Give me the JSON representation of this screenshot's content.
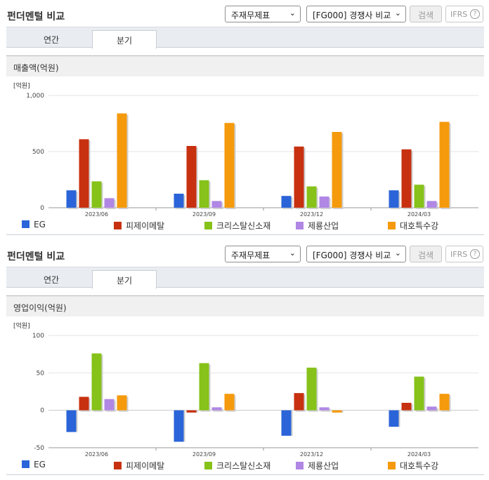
{
  "header": {
    "title": "펀더멘털 비교",
    "statement_select": "주재무제표",
    "peer_select": "[FG000] 경쟁사 비교",
    "search_label": "검색",
    "ifrs_label": "IFRS",
    "help_glyph": "?"
  },
  "tabs": [
    "연간",
    "분기"
  ],
  "active_tab": 1,
  "colors": {
    "EG": "#2a64d8",
    "피제이메탈": "#c73110",
    "크리스탈신소재": "#86c21a",
    "제룡산업": "#b087e4",
    "대호특수강": "#f59a0c"
  },
  "panels": [
    {
      "subtitle": "매출액(억원)",
      "unit_label": "[억원]"
    },
    {
      "subtitle": "영업이익(억원)",
      "unit_label": "[억원]"
    }
  ],
  "chart_data": [
    {
      "type": "bar",
      "ylabel": "[억원]",
      "ylim": [
        0,
        1000
      ],
      "yticks": [
        0,
        500,
        1000
      ],
      "ytick_labels": [
        "0",
        "500",
        "1,000"
      ],
      "categories": [
        "2023/06",
        "2023/09",
        "2023/12",
        "2024/03"
      ],
      "series": [
        {
          "name": "EG",
          "values": [
            155,
            125,
            105,
            155
          ]
        },
        {
          "name": "피제이메탈",
          "values": [
            610,
            550,
            545,
            520
          ]
        },
        {
          "name": "크리스탈신소재",
          "values": [
            235,
            245,
            190,
            205
          ]
        },
        {
          "name": "제룡산업",
          "values": [
            85,
            60,
            100,
            60
          ]
        },
        {
          "name": "대호특수강",
          "values": [
            840,
            755,
            675,
            765
          ]
        }
      ],
      "legend": "bottom"
    },
    {
      "type": "bar",
      "ylabel": "[억원]",
      "ylim": [
        -50,
        100
      ],
      "yticks": [
        -50,
        0,
        50,
        100
      ],
      "ytick_labels": [
        "-50",
        "0",
        "50",
        "100"
      ],
      "categories": [
        "2023/06",
        "2023/09",
        "2023/12",
        "2024/03"
      ],
      "series": [
        {
          "name": "EG",
          "values": [
            -29,
            -42,
            -34,
            -22
          ]
        },
        {
          "name": "피제이메탈",
          "values": [
            18,
            -3,
            23,
            10
          ]
        },
        {
          "name": "크리스탈신소재",
          "values": [
            76,
            63,
            57,
            45
          ]
        },
        {
          "name": "제룡산업",
          "values": [
            15,
            4,
            4,
            5
          ]
        },
        {
          "name": "대호특수강",
          "values": [
            20,
            22,
            -3,
            22
          ]
        }
      ],
      "legend": "bottom"
    }
  ]
}
